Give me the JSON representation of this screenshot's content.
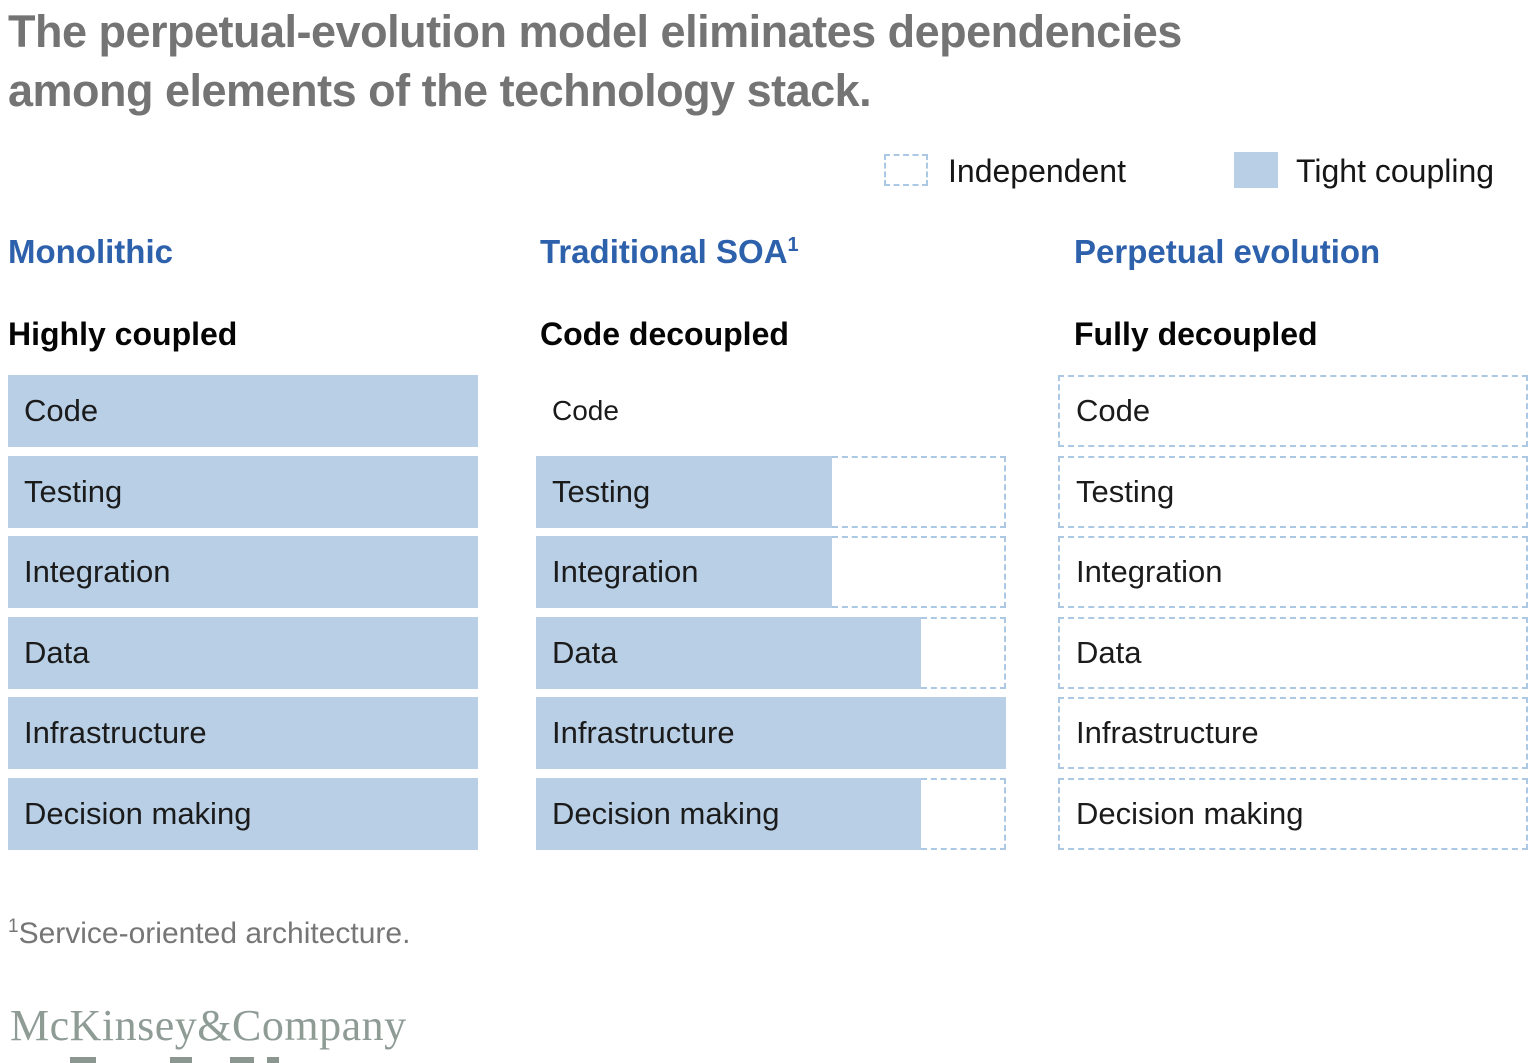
{
  "title": {
    "line1": "The perpetual-evolution model eliminates dependencies",
    "line2": "among elements of the technology stack."
  },
  "legend": {
    "independent": "Independent",
    "tight_coupling": "Tight coupling"
  },
  "colors": {
    "tight_coupling_fill": "#b8cfe6",
    "independent_dash_border": "#abc8e4",
    "header_blue": "#2d61ac",
    "title_gray": "#747474",
    "footnote_gray": "#767676",
    "logo_gray": "#8f9c96"
  },
  "columns": [
    {
      "header": "Monolithic",
      "header_sup": "",
      "subtitle": "Highly coupled",
      "rows": [
        {
          "label": "Code",
          "solid_pct": 100,
          "independent_remainder": false
        },
        {
          "label": "Testing",
          "solid_pct": 100,
          "independent_remainder": false
        },
        {
          "label": "Integration",
          "solid_pct": 100,
          "independent_remainder": false
        },
        {
          "label": "Data",
          "solid_pct": 100,
          "independent_remainder": false
        },
        {
          "label": "Infrastructure",
          "solid_pct": 100,
          "independent_remainder": false
        },
        {
          "label": "Decision making",
          "solid_pct": 100,
          "independent_remainder": false
        }
      ]
    },
    {
      "header": "Traditional SOA",
      "header_sup": "1",
      "subtitle": "Code decoupled",
      "rows": [
        {
          "label": "Code",
          "solid_pct": 0,
          "text_only": true
        },
        {
          "label": "Testing",
          "solid_pct": 63,
          "independent_remainder": true
        },
        {
          "label": "Integration",
          "solid_pct": 63,
          "independent_remainder": true
        },
        {
          "label": "Data",
          "solid_pct": 82,
          "independent_remainder": true
        },
        {
          "label": "Infrastructure",
          "solid_pct": 100,
          "independent_remainder": false
        },
        {
          "label": "Decision making",
          "solid_pct": 82,
          "independent_remainder": true
        }
      ]
    },
    {
      "header": "Perpetual evolution",
      "header_sup": "",
      "subtitle": "Fully decoupled",
      "rows": [
        {
          "label": "Code",
          "solid_pct": 0,
          "fully_independent": true
        },
        {
          "label": "Testing",
          "solid_pct": 0,
          "fully_independent": true
        },
        {
          "label": "Integration",
          "solid_pct": 0,
          "fully_independent": true
        },
        {
          "label": "Data",
          "solid_pct": 0,
          "fully_independent": true
        },
        {
          "label": "Infrastructure",
          "solid_pct": 0,
          "fully_independent": true
        },
        {
          "label": "Decision making",
          "solid_pct": 0,
          "fully_independent": true
        }
      ]
    }
  ],
  "footnote": {
    "sup": "1",
    "text": "Service-oriented architecture."
  },
  "footer": {
    "logo": "McKinsey&Company"
  }
}
